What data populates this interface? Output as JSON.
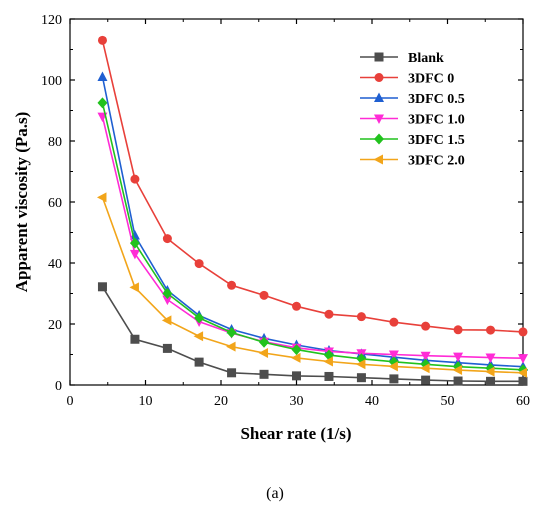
{
  "caption": "(a)",
  "chart_data": {
    "type": "line",
    "xlabel": "Shear rate (1/s)",
    "ylabel": "Apparent viscosity (Pa.s)",
    "xlim": [
      0,
      60
    ],
    "ylim": [
      0,
      120
    ],
    "xticks": [
      0,
      10,
      20,
      30,
      40,
      50,
      60
    ],
    "yticks": [
      0,
      20,
      40,
      60,
      80,
      100,
      120
    ],
    "grid": false,
    "legend_position": "top-right",
    "x": [
      4.3,
      8.6,
      12.9,
      17.1,
      21.4,
      25.7,
      30.0,
      34.3,
      38.6,
      42.9,
      47.1,
      51.4,
      55.7,
      60.0
    ],
    "series": [
      {
        "name": "Blank",
        "color": "#4d4d4d",
        "marker": "square",
        "values": [
          32.2,
          15.0,
          12.0,
          7.5,
          4.0,
          3.5,
          3.0,
          2.8,
          2.4,
          2.0,
          1.6,
          1.3,
          1.2,
          1.2
        ]
      },
      {
        "name": "3DFC 0",
        "color": "#e8403a",
        "marker": "circle",
        "values": [
          113.0,
          67.5,
          48.0,
          39.8,
          32.7,
          29.4,
          25.8,
          23.2,
          22.4,
          20.6,
          19.3,
          18.1,
          18.0,
          17.4
        ]
      },
      {
        "name": "3DFC 0.5",
        "color": "#1f5fd1",
        "marker": "triangle-up",
        "values": [
          101.0,
          49.0,
          31.0,
          22.8,
          18.2,
          15.3,
          13.1,
          11.3,
          10.2,
          9.1,
          8.1,
          7.3,
          6.6,
          6.0
        ]
      },
      {
        "name": "3DFC 1.0",
        "color": "#ff2bd6",
        "marker": "triangle-down",
        "values": [
          88.0,
          43.0,
          28.0,
          20.8,
          17.0,
          14.2,
          12.2,
          11.0,
          10.4,
          10.0,
          9.6,
          9.3,
          9.0,
          8.8
        ]
      },
      {
        "name": "3DFC 1.5",
        "color": "#21c21d",
        "marker": "diamond",
        "values": [
          92.5,
          46.5,
          30.0,
          22.0,
          17.2,
          14.0,
          11.6,
          9.8,
          8.6,
          7.6,
          6.8,
          6.0,
          5.5,
          5.0
        ]
      },
      {
        "name": "3DFC 2.0",
        "color": "#f2a51a",
        "marker": "triangle-left",
        "values": [
          61.5,
          32.0,
          21.2,
          16.0,
          12.6,
          10.5,
          8.9,
          7.7,
          6.8,
          6.1,
          5.5,
          4.9,
          4.4,
          4.0
        ]
      }
    ]
  }
}
